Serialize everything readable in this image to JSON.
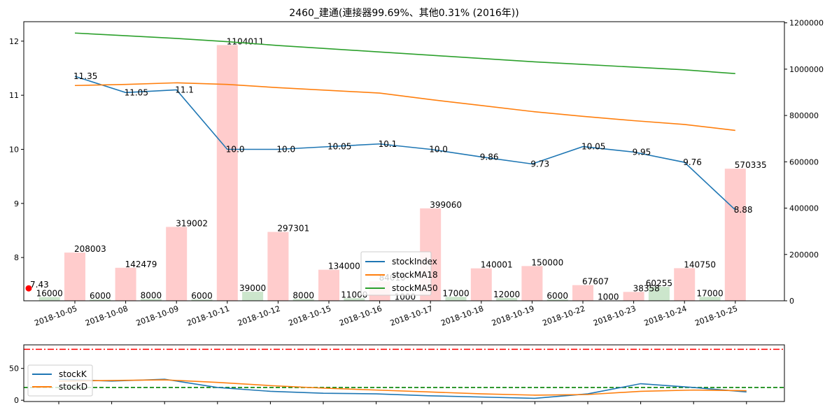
{
  "chart_data": [
    {
      "type": "line+bar",
      "title": "2460_建通(連接器99.69%、其他0.31% (2016年))",
      "categories": [
        "2018-10-05",
        "2018-10-08",
        "2018-10-09",
        "2018-10-11",
        "2018-10-12",
        "2018-10-15",
        "2018-10-16",
        "2018-10-17",
        "2018-10-18",
        "2018-10-19",
        "2018-10-22",
        "2018-10-23",
        "2018-10-24",
        "2018-10-25"
      ],
      "ylim": [
        7.2,
        12.36
      ],
      "y2lim": [
        0,
        1205000
      ],
      "yticks": [
        "8",
        "9",
        "10",
        "11",
        "12"
      ],
      "y2ticks": [
        "0",
        "200000",
        "400000",
        "600000",
        "800000",
        "1000000",
        "1200000"
      ],
      "series": [
        {
          "name": "stockIndex",
          "color": "#1f77b4",
          "values": [
            11.35,
            11.05,
            11.1,
            10.0,
            10.0,
            10.05,
            10.1,
            10.0,
            9.86,
            9.73,
            10.05,
            9.95,
            9.76,
            8.88
          ],
          "labels": [
            "11.35",
            "11.05",
            "11.1",
            "10.0",
            "10.0",
            "10.05",
            "10.1",
            "10.0",
            "9.86",
            "9.73",
            "10.05",
            "9.95",
            "9.76",
            "8.88"
          ]
        },
        {
          "name": "stockMA18",
          "color": "#ff7f0e",
          "values": [
            11.18,
            11.2,
            11.23,
            11.2,
            11.14,
            11.09,
            11.04,
            10.92,
            10.81,
            10.7,
            10.61,
            10.53,
            10.46,
            10.35
          ]
        },
        {
          "name": "stockMA50",
          "color": "#2ca02c",
          "values": [
            12.15,
            12.1,
            12.05,
            11.99,
            11.92,
            11.86,
            11.8,
            11.74,
            11.68,
            11.62,
            11.57,
            11.52,
            11.47,
            11.4
          ]
        }
      ],
      "marker": {
        "x_index": -1,
        "value": 7.43,
        "label": "7.43",
        "color": "#ff0000"
      },
      "volume_bars": {
        "up_color": "#ffcccc",
        "down_color": "#cce6cc",
        "bars": [
          {
            "i": -0.5,
            "v": 16000,
            "label": "16000",
            "dir": "down"
          },
          {
            "i": 0,
            "v": 208003,
            "label": "208003",
            "dir": "up"
          },
          {
            "i": 0.5,
            "v": 6000,
            "label": "6000",
            "dir": "down"
          },
          {
            "i": 1,
            "v": 142479,
            "label": "142479",
            "dir": "up"
          },
          {
            "i": 1.5,
            "v": 8000,
            "label": "8000",
            "dir": "down"
          },
          {
            "i": 2,
            "v": 319002,
            "label": "319002",
            "dir": "up"
          },
          {
            "i": 2.5,
            "v": 6000,
            "label": "6000",
            "dir": "down"
          },
          {
            "i": 3,
            "v": 1104011,
            "label": "1104011",
            "dir": "up"
          },
          {
            "i": 3.5,
            "v": 39000,
            "label": "39000",
            "dir": "down"
          },
          {
            "i": 4,
            "v": 297301,
            "label": "297301",
            "dir": "up"
          },
          {
            "i": 4.5,
            "v": 8000,
            "label": "8000",
            "dir": "down"
          },
          {
            "i": 5,
            "v": 134000,
            "label": "134000",
            "dir": "up"
          },
          {
            "i": 5.5,
            "v": 11000,
            "label": "11000",
            "dir": "down"
          },
          {
            "i": 6,
            "v": 84010,
            "label": "84010",
            "dir": "up"
          },
          {
            "i": 6.5,
            "v": 1000,
            "label": "1000",
            "dir": "down"
          },
          {
            "i": 7,
            "v": 399060,
            "label": "399060",
            "dir": "up"
          },
          {
            "i": 7.5,
            "v": 17000,
            "label": "17000",
            "dir": "down"
          },
          {
            "i": 8,
            "v": 140001,
            "label": "140001",
            "dir": "up"
          },
          {
            "i": 8.5,
            "v": 12000,
            "label": "12000",
            "dir": "down"
          },
          {
            "i": 9,
            "v": 150000,
            "label": "150000",
            "dir": "up"
          },
          {
            "i": 9.5,
            "v": 6000,
            "label": "6000",
            "dir": "down"
          },
          {
            "i": 10,
            "v": 67607,
            "label": "67607",
            "dir": "up"
          },
          {
            "i": 10.5,
            "v": 1000,
            "label": "1000",
            "dir": "down"
          },
          {
            "i": 11,
            "v": 38358,
            "label": "38358",
            "dir": "up"
          },
          {
            "i": 11.5,
            "v": 60255,
            "label": "60255",
            "dir": "down"
          },
          {
            "i": 12,
            "v": 140750,
            "label": "140750",
            "dir": "up"
          },
          {
            "i": 12.5,
            "v": 17000,
            "label": "17000",
            "dir": "down"
          },
          {
            "i": 13,
            "v": 570335,
            "label": "570335",
            "dir": "up"
          }
        ]
      },
      "legend": {
        "position": "center-bottom",
        "entries": [
          "stockIndex",
          "stockMA18",
          "stockMA50"
        ]
      }
    },
    {
      "type": "line",
      "ylim": [
        -2,
        87
      ],
      "yticks": [
        "0",
        "50"
      ],
      "series": [
        {
          "name": "stockK",
          "color": "#1f77b4",
          "values": [
            33,
            30,
            33,
            20,
            14,
            11,
            10,
            7,
            5,
            3,
            10,
            26,
            20,
            13
          ]
        },
        {
          "name": "stockD",
          "color": "#ff7f0e",
          "values": [
            30,
            31,
            32,
            28,
            23,
            19,
            16,
            13,
            10,
            8,
            9,
            14,
            16,
            15
          ]
        }
      ],
      "hlines": [
        {
          "value": 80,
          "color": "#ff0000",
          "style": "dashdot"
        },
        {
          "value": 20,
          "color": "#008000",
          "style": "dashed"
        }
      ],
      "legend": {
        "position": "left",
        "entries": [
          "stockK",
          "stockD"
        ]
      }
    }
  ]
}
